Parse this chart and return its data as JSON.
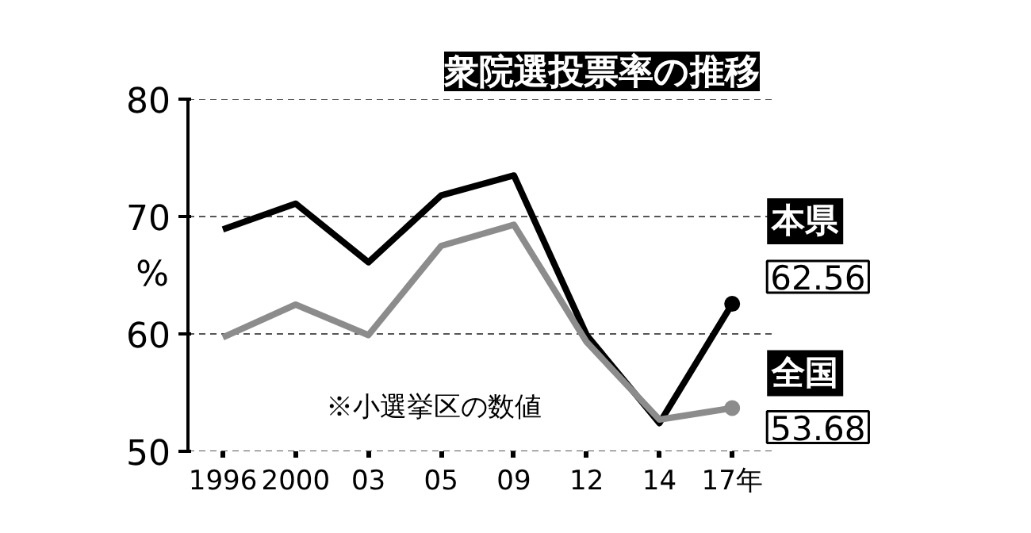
{
  "chart_data": {
    "type": "line",
    "title": "衆院選投票率の推移",
    "ylabel": "%",
    "categories": [
      "1996",
      "2000",
      "03",
      "05",
      "09",
      "12",
      "14",
      "17年"
    ],
    "series": [
      {
        "name": "本県",
        "color": "#000000",
        "values": [
          68.9,
          71.1,
          66.1,
          71.8,
          73.5,
          59.9,
          52.4,
          62.56
        ],
        "value_labels": [
          null,
          null,
          null,
          null,
          null,
          null,
          null,
          "62.56"
        ]
      },
      {
        "name": "全国",
        "color": "#8c8c8c",
        "values": [
          59.7,
          62.5,
          59.9,
          67.5,
          69.3,
          59.3,
          52.7,
          53.68
        ],
        "value_labels": [
          null,
          null,
          null,
          null,
          null,
          null,
          null,
          "53.68"
        ]
      }
    ],
    "ylim": [
      50,
      80
    ],
    "yticks": [
      50,
      60,
      70,
      80
    ],
    "grid": "y",
    "line_style": "solid",
    "annotations": [
      "※小選挙区の数値"
    ]
  }
}
